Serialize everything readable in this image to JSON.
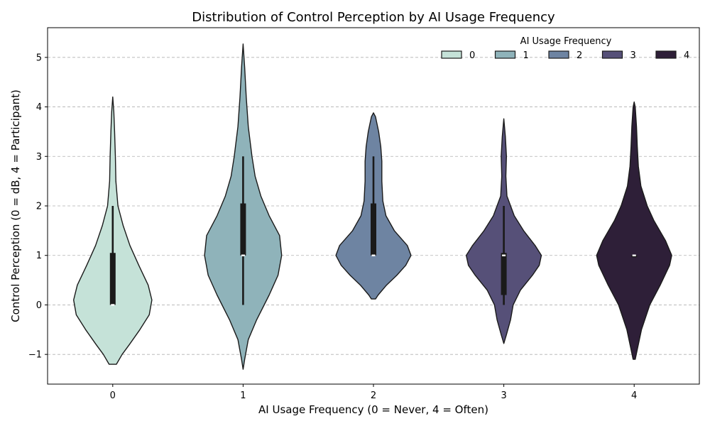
{
  "chart_data": {
    "type": "violin",
    "title": "Distribution of Control Perception by AI Usage Frequency",
    "xlabel": "AI Usage Frequency (0 = Never, 4 = Often)",
    "ylabel": "Control Perception (0 = dB, 4 = Participant)",
    "ylim": [
      -1.6,
      5.6
    ],
    "yticks": [
      -1,
      0,
      1,
      2,
      3,
      4,
      5
    ],
    "categories": [
      "0",
      "1",
      "2",
      "3",
      "4"
    ],
    "grid": "y-dashed",
    "legend": {
      "title": "AI Usage Frequency",
      "placement": "top-right",
      "entries": [
        "0",
        "1",
        "2",
        "3",
        "4"
      ]
    },
    "colors": [
      "#c5e2d8",
      "#8fb3ba",
      "#6e84a2",
      "#565078",
      "#2e1f38"
    ],
    "series": [
      {
        "category": "0",
        "q1": 0.0,
        "median": 0.0,
        "q3": 1.05,
        "whisker_low": 0.0,
        "whisker_high": 2.0,
        "density": [
          [
            -1.2,
            0.07
          ],
          [
            -1.0,
            0.18
          ],
          [
            -0.8,
            0.32
          ],
          [
            -0.5,
            0.52
          ],
          [
            -0.2,
            0.7
          ],
          [
            0.1,
            0.75
          ],
          [
            0.4,
            0.68
          ],
          [
            0.8,
            0.5
          ],
          [
            1.2,
            0.33
          ],
          [
            1.6,
            0.2
          ],
          [
            2.0,
            0.1
          ],
          [
            2.5,
            0.06
          ],
          [
            3.0,
            0.05
          ],
          [
            3.5,
            0.035
          ],
          [
            3.9,
            0.02
          ],
          [
            4.2,
            0.0
          ]
        ]
      },
      {
        "category": "1",
        "q1": 1.0,
        "median": 1.0,
        "q3": 2.05,
        "whisker_low": 0.0,
        "whisker_high": 3.0,
        "density": [
          [
            -1.3,
            0.0
          ],
          [
            -1.1,
            0.03
          ],
          [
            -0.7,
            0.1
          ],
          [
            -0.3,
            0.26
          ],
          [
            0.2,
            0.5
          ],
          [
            0.6,
            0.67
          ],
          [
            1.0,
            0.74
          ],
          [
            1.4,
            0.7
          ],
          [
            1.8,
            0.5
          ],
          [
            2.2,
            0.34
          ],
          [
            2.6,
            0.23
          ],
          [
            3.0,
            0.17
          ],
          [
            3.6,
            0.1
          ],
          [
            4.2,
            0.06
          ],
          [
            4.8,
            0.03
          ],
          [
            5.27,
            0.0
          ]
        ]
      },
      {
        "category": "2",
        "q1": 1.0,
        "median": 1.0,
        "q3": 2.05,
        "whisker_low": 1.0,
        "whisker_high": 3.0,
        "density": [
          [
            0.12,
            0.04
          ],
          [
            0.2,
            0.09
          ],
          [
            0.4,
            0.25
          ],
          [
            0.6,
            0.45
          ],
          [
            0.8,
            0.62
          ],
          [
            1.0,
            0.72
          ],
          [
            1.2,
            0.65
          ],
          [
            1.5,
            0.4
          ],
          [
            1.8,
            0.24
          ],
          [
            2.1,
            0.18
          ],
          [
            2.5,
            0.16
          ],
          [
            2.9,
            0.16
          ],
          [
            3.2,
            0.14
          ],
          [
            3.5,
            0.1
          ],
          [
            3.8,
            0.04
          ],
          [
            3.88,
            0.0
          ]
        ]
      },
      {
        "category": "3",
        "q1": 0.2,
        "median": 1.0,
        "q3": 1.05,
        "whisker_low": 0.0,
        "whisker_high": 2.0,
        "density": [
          [
            -0.78,
            0.0
          ],
          [
            -0.6,
            0.05
          ],
          [
            -0.3,
            0.13
          ],
          [
            0.0,
            0.18
          ],
          [
            0.3,
            0.32
          ],
          [
            0.6,
            0.55
          ],
          [
            0.8,
            0.68
          ],
          [
            1.0,
            0.72
          ],
          [
            1.2,
            0.6
          ],
          [
            1.5,
            0.38
          ],
          [
            1.8,
            0.2
          ],
          [
            2.2,
            0.06
          ],
          [
            2.6,
            0.04
          ],
          [
            3.0,
            0.05
          ],
          [
            3.4,
            0.03
          ],
          [
            3.76,
            0.0
          ]
        ]
      },
      {
        "category": "4",
        "q1": 1.0,
        "median": 1.0,
        "q3": 1.0,
        "whisker_low": 1.0,
        "whisker_high": 1.0,
        "density": [
          [
            -1.1,
            0.02
          ],
          [
            -0.9,
            0.06
          ],
          [
            -0.5,
            0.14
          ],
          [
            0.0,
            0.3
          ],
          [
            0.4,
            0.5
          ],
          [
            0.8,
            0.68
          ],
          [
            1.0,
            0.72
          ],
          [
            1.3,
            0.6
          ],
          [
            1.7,
            0.38
          ],
          [
            2.0,
            0.25
          ],
          [
            2.4,
            0.13
          ],
          [
            2.8,
            0.08
          ],
          [
            3.2,
            0.06
          ],
          [
            3.6,
            0.045
          ],
          [
            4.0,
            0.02
          ],
          [
            4.1,
            0.0
          ]
        ]
      }
    ]
  }
}
